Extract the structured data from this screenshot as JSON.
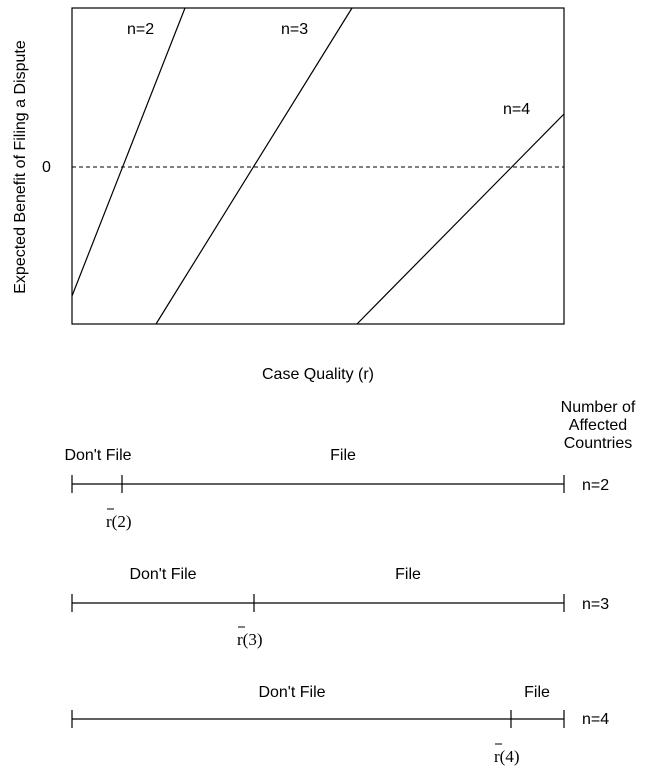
{
  "plot": {
    "y_axis_label": "Expected Benefit of Filing a Dispute",
    "x_axis_label": "Case Quality (r)",
    "zero_label": "0",
    "curves": [
      {
        "label": "n=2",
        "n": 2
      },
      {
        "label": "n=3",
        "n": 3
      },
      {
        "label": "n=4",
        "n": 4
      }
    ]
  },
  "legend_header": [
    "Number of",
    "Affected",
    "Countries"
  ],
  "number_lines": [
    {
      "n_label": "n=2",
      "left_label": "Don't File",
      "right_label": "File",
      "threshold_label": "r(2)"
    },
    {
      "n_label": "n=3",
      "left_label": "Don't File",
      "right_label": "File",
      "threshold_label": "r(3)"
    },
    {
      "n_label": "n=4",
      "left_label": "Don't File",
      "right_label": "File",
      "threshold_label": "r(4)"
    }
  ]
}
